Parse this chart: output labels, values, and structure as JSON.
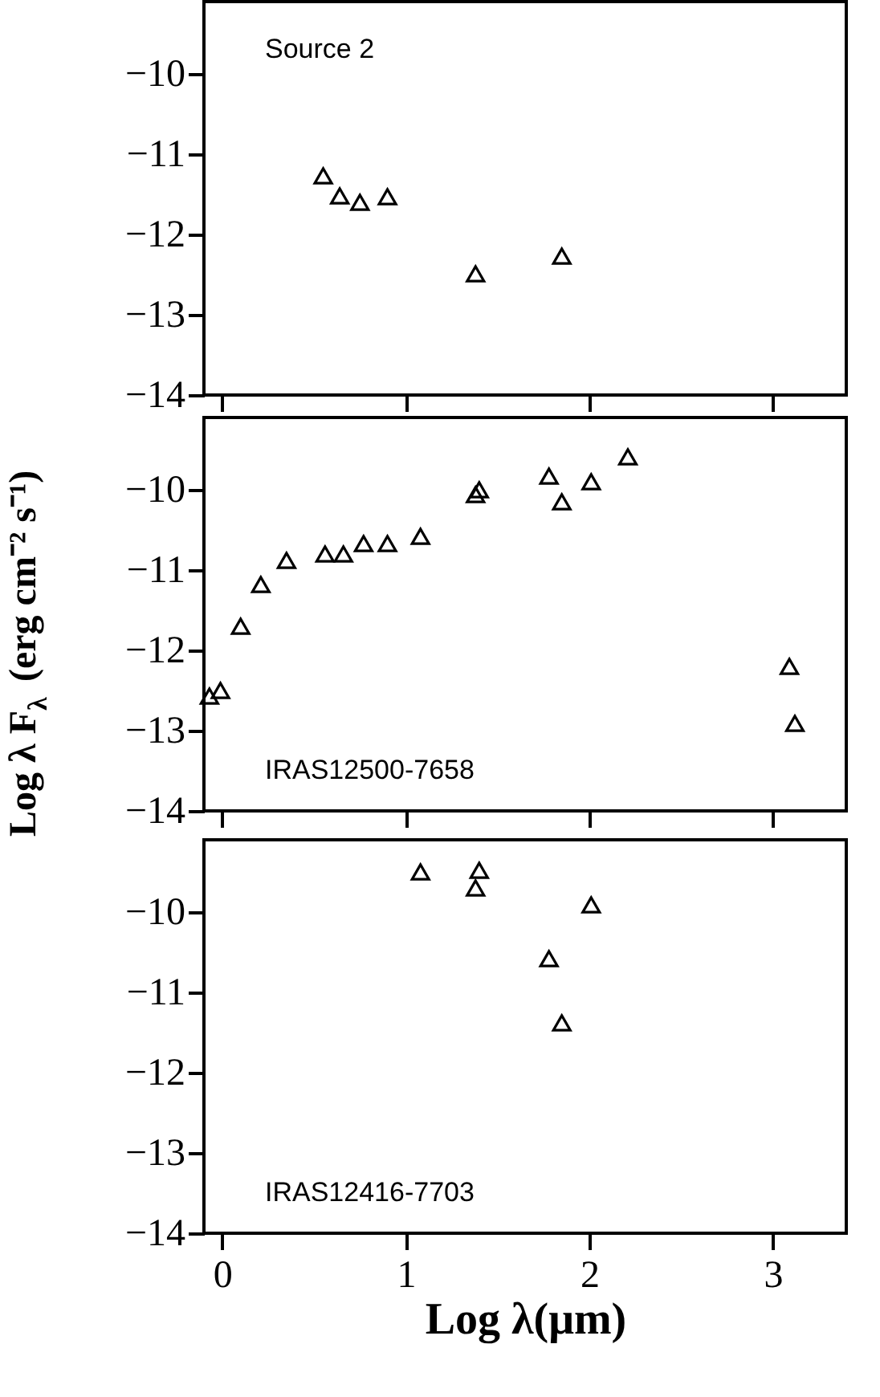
{
  "chart_data": [
    {
      "type": "scatter",
      "annotations": [
        "Source 2"
      ],
      "x": [
        0.55,
        0.64,
        0.75,
        0.9,
        1.38,
        1.85
      ],
      "series": [
        {
          "color": "#000000",
          "values": [
            -11.27,
            -11.52,
            -11.6,
            -11.53,
            -12.49,
            -12.27
          ]
        }
      ],
      "marker": "triangle",
      "xlim": [
        -0.1,
        3.4
      ],
      "xticks": [
        0,
        1,
        2,
        3
      ],
      "ylim": [
        -14,
        -9.1
      ],
      "yticks": [
        -14,
        -13,
        -12,
        -11,
        -10
      ],
      "tick_labels": "y",
      "grid": false
    },
    {
      "type": "scatter",
      "ylabel": "Log λ F$_{λ}$ (erg cm⁻² s⁻¹)",
      "annotations": [
        "IRAS12500-7658"
      ],
      "x": [
        -0.07,
        -0.01,
        0.1,
        0.21,
        0.35,
        0.56,
        0.66,
        0.77,
        0.9,
        1.08,
        1.38,
        1.4,
        1.78,
        1.85,
        2.01,
        2.21,
        3.09,
        3.12
      ],
      "series": [
        {
          "color": "#000000",
          "values": [
            -12.57,
            -12.5,
            -11.7,
            -11.18,
            -10.88,
            -10.8,
            -10.8,
            -10.67,
            -10.67,
            -10.58,
            -10.06,
            -10.0,
            -9.83,
            -10.15,
            -9.9,
            -9.59,
            -12.2,
            -12.91
          ]
        }
      ],
      "marker": "triangle",
      "xlim": [
        -0.1,
        3.4
      ],
      "xticks": [
        0,
        1,
        2,
        3
      ],
      "ylim": [
        -14,
        -9.1
      ],
      "yticks": [
        -14,
        -13,
        -12,
        -11,
        -10
      ],
      "tick_labels": "y",
      "grid": false
    },
    {
      "type": "scatter",
      "xlabel": "Log λ(μm)",
      "annotations": [
        "IRAS12416-7703"
      ],
      "x": [
        1.08,
        1.4,
        1.38,
        2.01,
        1.78,
        1.85
      ],
      "series": [
        {
          "color": "#000000",
          "values": [
            -9.5,
            -9.48,
            -9.7,
            -9.91,
            -10.58,
            -11.38
          ]
        }
      ],
      "marker": "triangle",
      "xlim": [
        -0.1,
        3.4
      ],
      "xticks": [
        0,
        1,
        2,
        3
      ],
      "ylim": [
        -14,
        -9.1
      ],
      "yticks": [
        -14,
        -13,
        -12,
        -11,
        -10
      ],
      "grid": false
    }
  ]
}
